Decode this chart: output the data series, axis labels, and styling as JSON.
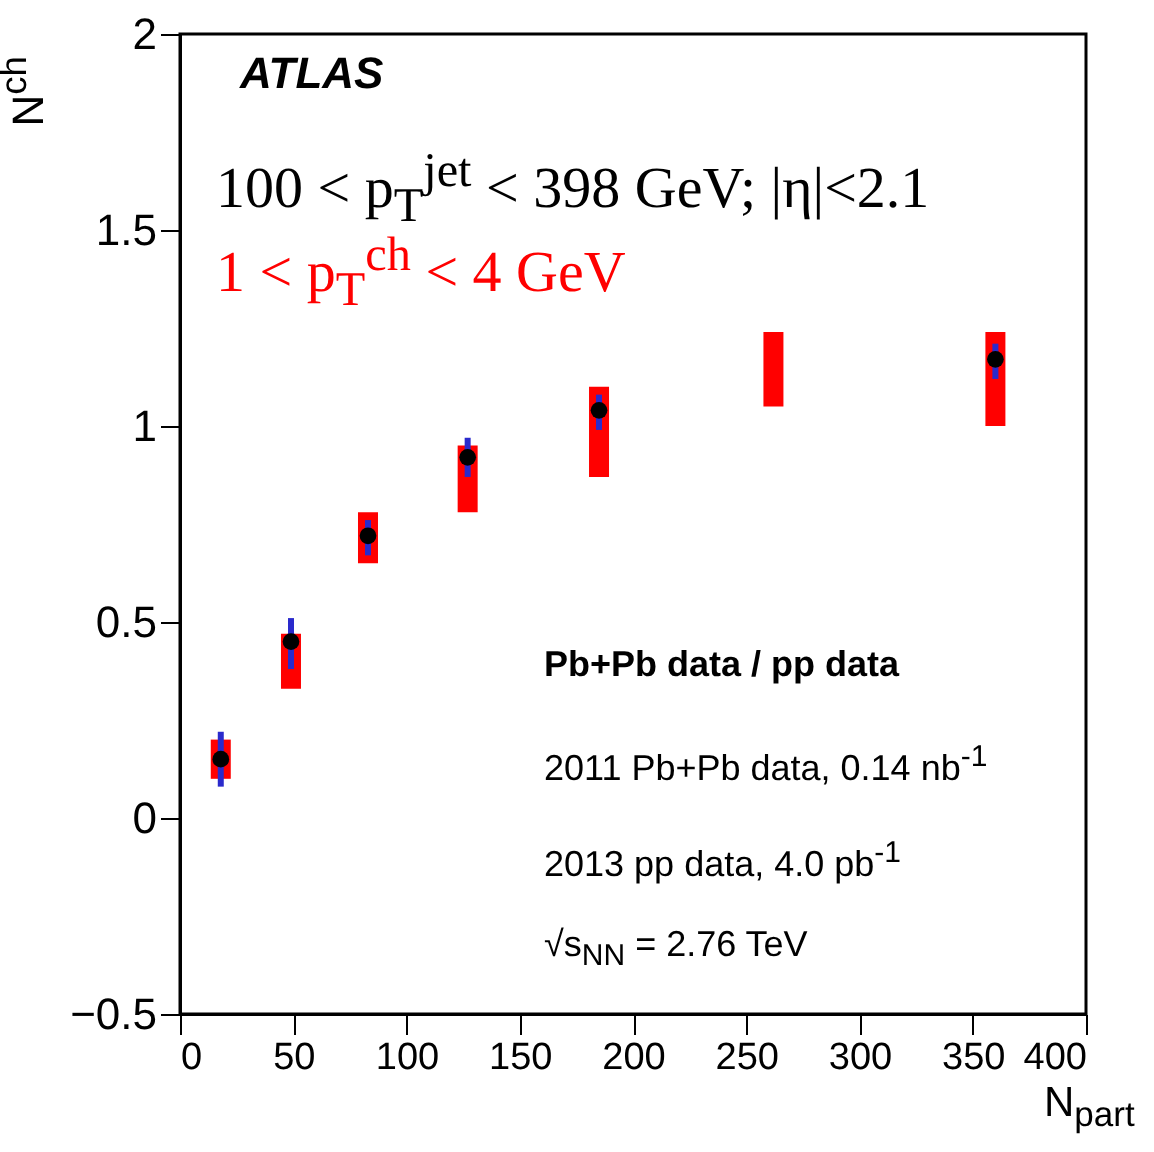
{
  "chart_data": {
    "type": "scatter",
    "xlabel": "N$_{part}$",
    "ylabel": "N$^{ch}$",
    "xlim": [
      0,
      400
    ],
    "xticks": [
      0,
      50,
      100,
      150,
      200,
      250,
      300,
      350,
      400
    ],
    "ylim": [
      -0.5,
      2
    ],
    "yticks": [
      -0.5,
      0,
      0.5,
      1,
      1.5,
      2
    ],
    "grid": false,
    "marker": "circle",
    "annotations": [
      "ATLAS",
      "100 < p$_{T}$$^{jet}$ < 398 GeV; |η|<2.1",
      "1 < p$_{T}$$^{ch}$ < 4 GeV",
      "Pb+Pb data / pp data",
      "2011 Pb+Pb data, 0.14 nb$^{-1}$",
      "2013 pp data, 4.0 pb$^{-1}$",
      "√s$_{NN}$ = 2.76 TeV"
    ],
    "series": [
      {
        "type": "bar",
        "color": "#ff0000",
        "x": [
          18,
          49,
          83,
          127,
          185,
          262,
          360
        ],
        "base": [
          0.1,
          0.33,
          0.65,
          0.78,
          0.87,
          1.05,
          1.0
        ],
        "values": [
          0.1,
          0.14,
          0.13,
          0.17,
          0.23,
          0.19,
          0.24
        ]
      },
      {
        "color": "#000000",
        "x": [
          18,
          49,
          83,
          127,
          185,
          262,
          360
        ],
        "values": [
          0.15,
          0.45,
          0.72,
          0.92,
          1.04,
          null,
          1.17
        ],
        "errors": [
          [
            0.08,
            0.22
          ],
          [
            0.38,
            0.51
          ],
          [
            0.67,
            0.76
          ],
          [
            0.87,
            0.97
          ],
          [
            0.99,
            1.08
          ],
          null,
          [
            1.12,
            1.21
          ]
        ]
      }
    ]
  }
}
